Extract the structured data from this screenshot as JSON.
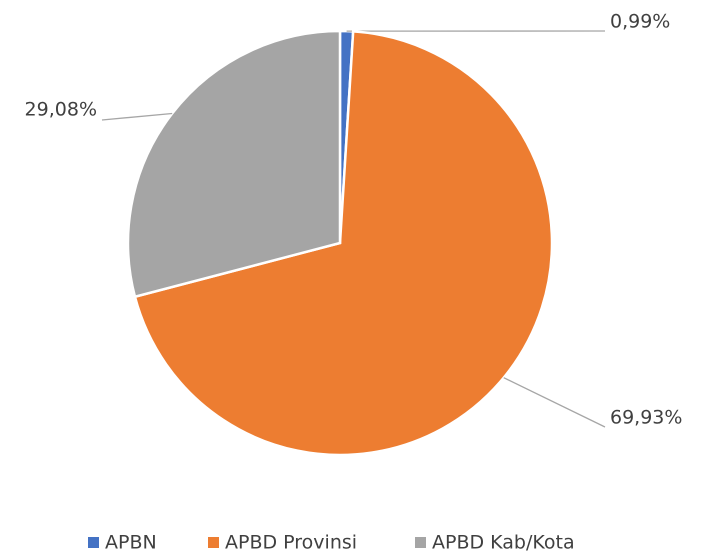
{
  "chart_data": {
    "type": "pie",
    "categories": [
      "APBN",
      "APBD Provinsi",
      "APBD Kab/Kota"
    ],
    "values": [
      0.99,
      69.93,
      29.08
    ],
    "value_labels": [
      "0,99%",
      "69,93%",
      "29,08%"
    ],
    "colors": [
      "#4472c4",
      "#ed7d31",
      "#a5a5a5"
    ],
    "legend": "bottom"
  }
}
